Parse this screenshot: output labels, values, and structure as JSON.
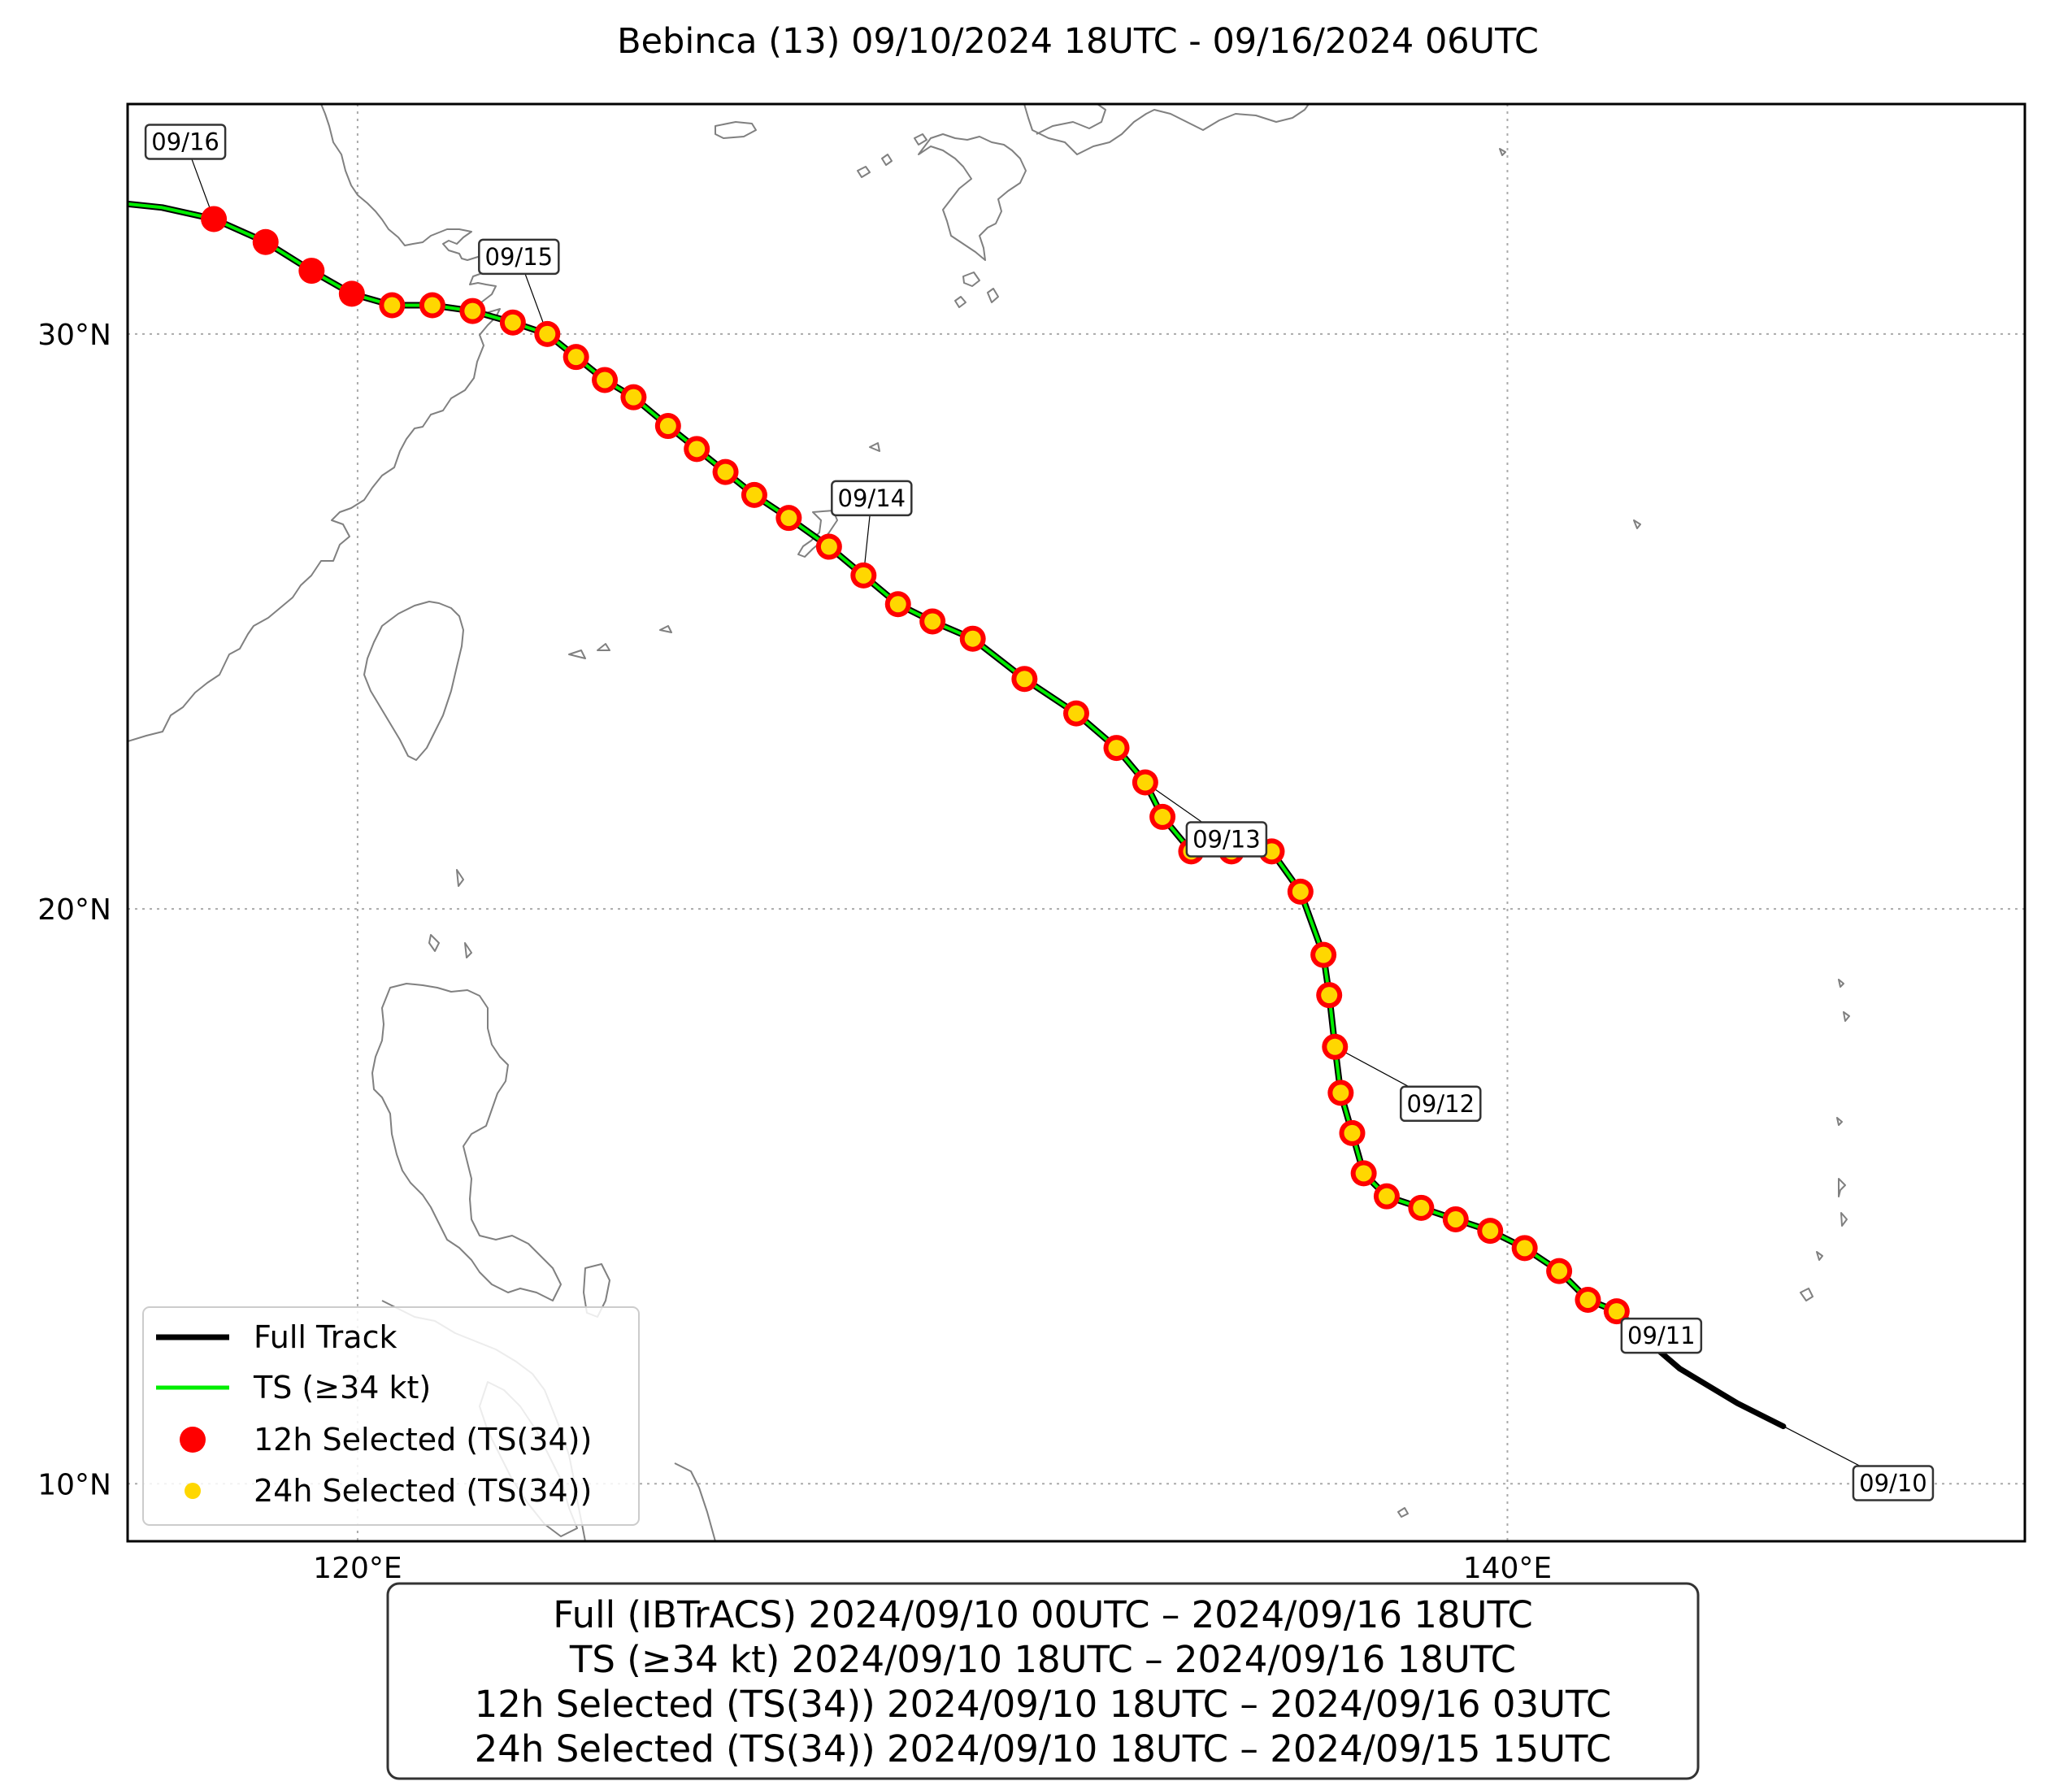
{
  "title": "Bebinca (13)   09/10/2024 18UTC - 09/16/2024 06UTC",
  "axes": {
    "x_ticks": [
      {
        "lon": 120,
        "label": "120°E"
      },
      {
        "lon": 140,
        "label": "140°E"
      }
    ],
    "y_ticks": [
      {
        "lat": 30,
        "label": "30°N"
      },
      {
        "lat": 20,
        "label": "20°N"
      },
      {
        "lat": 10,
        "label": "10°N"
      }
    ],
    "lon_range": [
      116,
      149
    ],
    "lat_range": [
      9,
      34
    ],
    "grid": true
  },
  "colors": {
    "full_track": "#000000",
    "ts_track": "#00ee00",
    "selected_12h": "#ff0000",
    "selected_24h": "#ffd700",
    "coastline": "#808080"
  },
  "legend": {
    "position": "lower-left",
    "items": [
      {
        "label": "Full Track",
        "type": "line",
        "color": "#000000"
      },
      {
        "label": "TS (≥34 kt)",
        "type": "line",
        "color": "#00ee00"
      },
      {
        "label": "12h Selected (TS(34))",
        "type": "dot",
        "color": "#ff0000"
      },
      {
        "label": "24h Selected (TS(34))",
        "type": "dot",
        "color": "#ffd700"
      }
    ]
  },
  "summary": {
    "lines": [
      "Full (IBTrACS)   2024/09/10 00UTC – 2024/09/16 18UTC",
      "TS (≥34 kt)   2024/09/10 18UTC – 2024/09/16 18UTC",
      "12h Selected (TS(34))   2024/09/10 18UTC – 2024/09/16 03UTC",
      "24h Selected (TS(34))   2024/09/10 18UTC – 2024/09/15 15UTC"
    ]
  },
  "chart_data": {
    "type": "scatter",
    "map_projection": "plate-carree",
    "full_track": [
      [
        144.8,
        11.0
      ],
      [
        144.0,
        11.4
      ],
      [
        143.0,
        12.0
      ],
      [
        142.3,
        12.6
      ],
      [
        141.9,
        13.0
      ]
    ],
    "ts_track": [
      [
        141.9,
        13.0
      ],
      [
        141.4,
        13.2
      ],
      [
        140.9,
        13.7
      ],
      [
        140.3,
        14.1
      ],
      [
        139.7,
        14.4
      ],
      [
        139.1,
        14.6
      ],
      [
        138.5,
        14.8
      ],
      [
        137.9,
        15.0
      ],
      [
        137.5,
        15.4
      ],
      [
        137.3,
        16.1
      ],
      [
        137.1,
        16.8
      ],
      [
        137.0,
        17.6
      ],
      [
        136.9,
        18.5
      ],
      [
        136.8,
        19.2
      ],
      [
        136.4,
        20.3
      ],
      [
        135.9,
        21.0
      ],
      [
        135.2,
        21.0
      ],
      [
        134.5,
        21.0
      ],
      [
        134.0,
        21.6
      ],
      [
        133.7,
        22.2
      ],
      [
        133.2,
        22.8
      ],
      [
        132.5,
        23.4
      ],
      [
        131.6,
        24.0
      ],
      [
        130.7,
        24.7
      ],
      [
        130.0,
        25.0
      ],
      [
        129.4,
        25.3
      ],
      [
        128.8,
        25.8
      ],
      [
        128.2,
        26.3
      ],
      [
        127.5,
        26.8
      ],
      [
        126.9,
        27.2
      ],
      [
        126.4,
        27.6
      ],
      [
        125.9,
        28.0
      ],
      [
        125.4,
        28.4
      ],
      [
        124.8,
        28.9
      ],
      [
        124.3,
        29.2
      ],
      [
        123.8,
        29.6
      ],
      [
        123.3,
        30.0
      ],
      [
        122.7,
        30.2
      ],
      [
        122.0,
        30.4
      ],
      [
        121.3,
        30.5
      ],
      [
        120.6,
        30.5
      ],
      [
        119.9,
        30.7
      ],
      [
        119.2,
        31.1
      ],
      [
        118.4,
        31.6
      ],
      [
        117.5,
        32.0
      ],
      [
        116.6,
        32.2
      ],
      [
        114.7,
        32.4
      ]
    ],
    "selected_12h": [
      [
        141.9,
        13.0
      ],
      [
        141.4,
        13.2
      ],
      [
        140.9,
        13.7
      ],
      [
        140.3,
        14.1
      ],
      [
        139.7,
        14.4
      ],
      [
        139.1,
        14.6
      ],
      [
        138.5,
        14.8
      ],
      [
        137.9,
        15.0
      ],
      [
        137.5,
        15.4
      ],
      [
        137.3,
        16.1
      ],
      [
        137.1,
        16.8
      ],
      [
        137.0,
        17.6
      ],
      [
        136.9,
        18.5
      ],
      [
        136.8,
        19.2
      ],
      [
        136.4,
        20.3
      ],
      [
        135.9,
        21.0
      ],
      [
        135.2,
        21.0
      ],
      [
        134.5,
        21.0
      ],
      [
        134.0,
        21.6
      ],
      [
        133.7,
        22.2
      ],
      [
        133.2,
        22.8
      ],
      [
        132.5,
        23.4
      ],
      [
        131.6,
        24.0
      ],
      [
        130.7,
        24.7
      ],
      [
        130.0,
        25.0
      ],
      [
        129.4,
        25.3
      ],
      [
        128.8,
        25.8
      ],
      [
        128.2,
        26.3
      ],
      [
        127.5,
        26.8
      ],
      [
        126.9,
        27.2
      ],
      [
        126.4,
        27.6
      ],
      [
        125.9,
        28.0
      ],
      [
        125.4,
        28.4
      ],
      [
        124.8,
        28.9
      ],
      [
        124.3,
        29.2
      ],
      [
        123.8,
        29.6
      ],
      [
        123.3,
        30.0
      ],
      [
        122.7,
        30.2
      ],
      [
        122.0,
        30.4
      ],
      [
        121.3,
        30.5
      ],
      [
        120.6,
        30.5
      ],
      [
        119.9,
        30.7
      ],
      [
        119.2,
        31.1
      ],
      [
        118.4,
        31.6
      ],
      [
        117.5,
        32.0
      ]
    ],
    "selected_24h": [
      [
        141.9,
        13.0
      ],
      [
        141.4,
        13.2
      ],
      [
        140.9,
        13.7
      ],
      [
        140.3,
        14.1
      ],
      [
        139.7,
        14.4
      ],
      [
        139.1,
        14.6
      ],
      [
        138.5,
        14.8
      ],
      [
        137.9,
        15.0
      ],
      [
        137.5,
        15.4
      ],
      [
        137.3,
        16.1
      ],
      [
        137.1,
        16.8
      ],
      [
        137.0,
        17.6
      ],
      [
        136.9,
        18.5
      ],
      [
        136.8,
        19.2
      ],
      [
        136.4,
        20.3
      ],
      [
        135.9,
        21.0
      ],
      [
        135.2,
        21.0
      ],
      [
        134.5,
        21.0
      ],
      [
        134.0,
        21.6
      ],
      [
        133.7,
        22.2
      ],
      [
        133.2,
        22.8
      ],
      [
        132.5,
        23.4
      ],
      [
        131.6,
        24.0
      ],
      [
        130.7,
        24.7
      ],
      [
        130.0,
        25.0
      ],
      [
        129.4,
        25.3
      ],
      [
        128.8,
        25.8
      ],
      [
        128.2,
        26.3
      ],
      [
        127.5,
        26.8
      ],
      [
        126.9,
        27.2
      ],
      [
        126.4,
        27.6
      ],
      [
        125.9,
        28.0
      ],
      [
        125.4,
        28.4
      ],
      [
        124.8,
        28.9
      ],
      [
        124.3,
        29.2
      ],
      [
        123.8,
        29.6
      ],
      [
        123.3,
        30.0
      ],
      [
        122.7,
        30.2
      ],
      [
        122.0,
        30.4
      ],
      [
        121.3,
        30.5
      ],
      [
        120.6,
        30.5
      ]
    ],
    "date_labels": [
      {
        "text": "09/10",
        "lon": 144.8,
        "lat": 11.0
      },
      {
        "text": "09/11",
        "lon": 141.9,
        "lat": 13.0
      },
      {
        "text": "09/12",
        "lon": 137.0,
        "lat": 17.6
      },
      {
        "text": "09/13",
        "lon": 133.7,
        "lat": 22.2
      },
      {
        "text": "09/14",
        "lon": 128.8,
        "lat": 25.8
      },
      {
        "text": "09/15",
        "lon": 123.3,
        "lat": 30.0
      },
      {
        "text": "09/16",
        "lon": 117.5,
        "lat": 32.0
      }
    ]
  }
}
